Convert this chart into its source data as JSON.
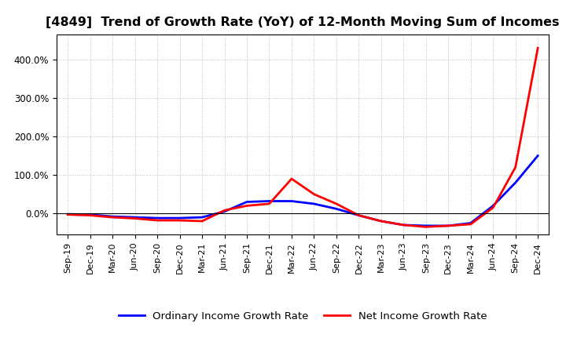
{
  "title": "[4849]  Trend of Growth Rate (YoY) of 12-Month Moving Sum of Incomes",
  "x_labels": [
    "Sep-19",
    "Dec-19",
    "Mar-20",
    "Jun-20",
    "Sep-20",
    "Dec-20",
    "Mar-21",
    "Jun-21",
    "Sep-21",
    "Dec-21",
    "Mar-22",
    "Jun-22",
    "Sep-22",
    "Dec-22",
    "Mar-23",
    "Jun-23",
    "Sep-23",
    "Dec-23",
    "Mar-24",
    "Jun-24",
    "Sep-24",
    "Dec-24"
  ],
  "ordinary_income": [
    -2,
    -3,
    -8,
    -10,
    -12,
    -12,
    -10,
    5,
    30,
    32,
    32,
    25,
    12,
    -5,
    -20,
    -30,
    -32,
    -32,
    -25,
    20,
    80,
    150
  ],
  "net_income": [
    -3,
    -5,
    -10,
    -13,
    -18,
    -18,
    -20,
    8,
    20,
    25,
    90,
    50,
    25,
    -5,
    -20,
    -30,
    -35,
    -32,
    -28,
    15,
    120,
    430
  ],
  "ylim": [
    -55,
    465
  ],
  "yticks": [
    0,
    100,
    200,
    300,
    400
  ],
  "ytick_labels": [
    "0.0%",
    "100.0%",
    "200.0%",
    "300.0%",
    "400.0%"
  ],
  "line_color_ordinary": "#0000FF",
  "line_color_net": "#FF0000",
  "legend_ordinary": "Ordinary Income Growth Rate",
  "legend_net": "Net Income Growth Rate",
  "background_color": "#FFFFFF",
  "grid_color": "#BBBBBB",
  "title_fontsize": 11.5,
  "axis_fontsize": 8.5,
  "legend_fontsize": 9.5
}
